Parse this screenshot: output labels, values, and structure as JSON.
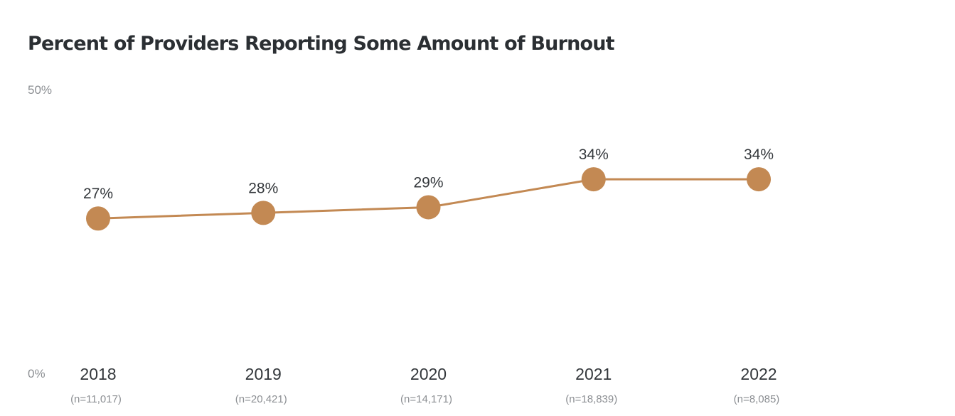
{
  "chart_data": {
    "type": "line",
    "title": "Percent of Providers Reporting Some Amount of Burnout",
    "categories": [
      "2018",
      "2019",
      "2020",
      "2021",
      "2022"
    ],
    "category_sublabels": [
      "(n=11,017)",
      "(n=20,421)",
      "(n=14,171)",
      "(n=18,839)",
      "(n=8,085)"
    ],
    "series": [
      {
        "values": [
          27,
          28,
          29,
          34,
          34
        ],
        "data_labels": [
          "27%",
          "28%",
          "29%",
          "34%",
          "34%"
        ],
        "color": "#c38953"
      }
    ],
    "ylim": [
      0,
      50
    ],
    "ytick_labels": [
      "50%",
      "0%"
    ],
    "xlabel": "",
    "ylabel": "",
    "grid": false
  }
}
